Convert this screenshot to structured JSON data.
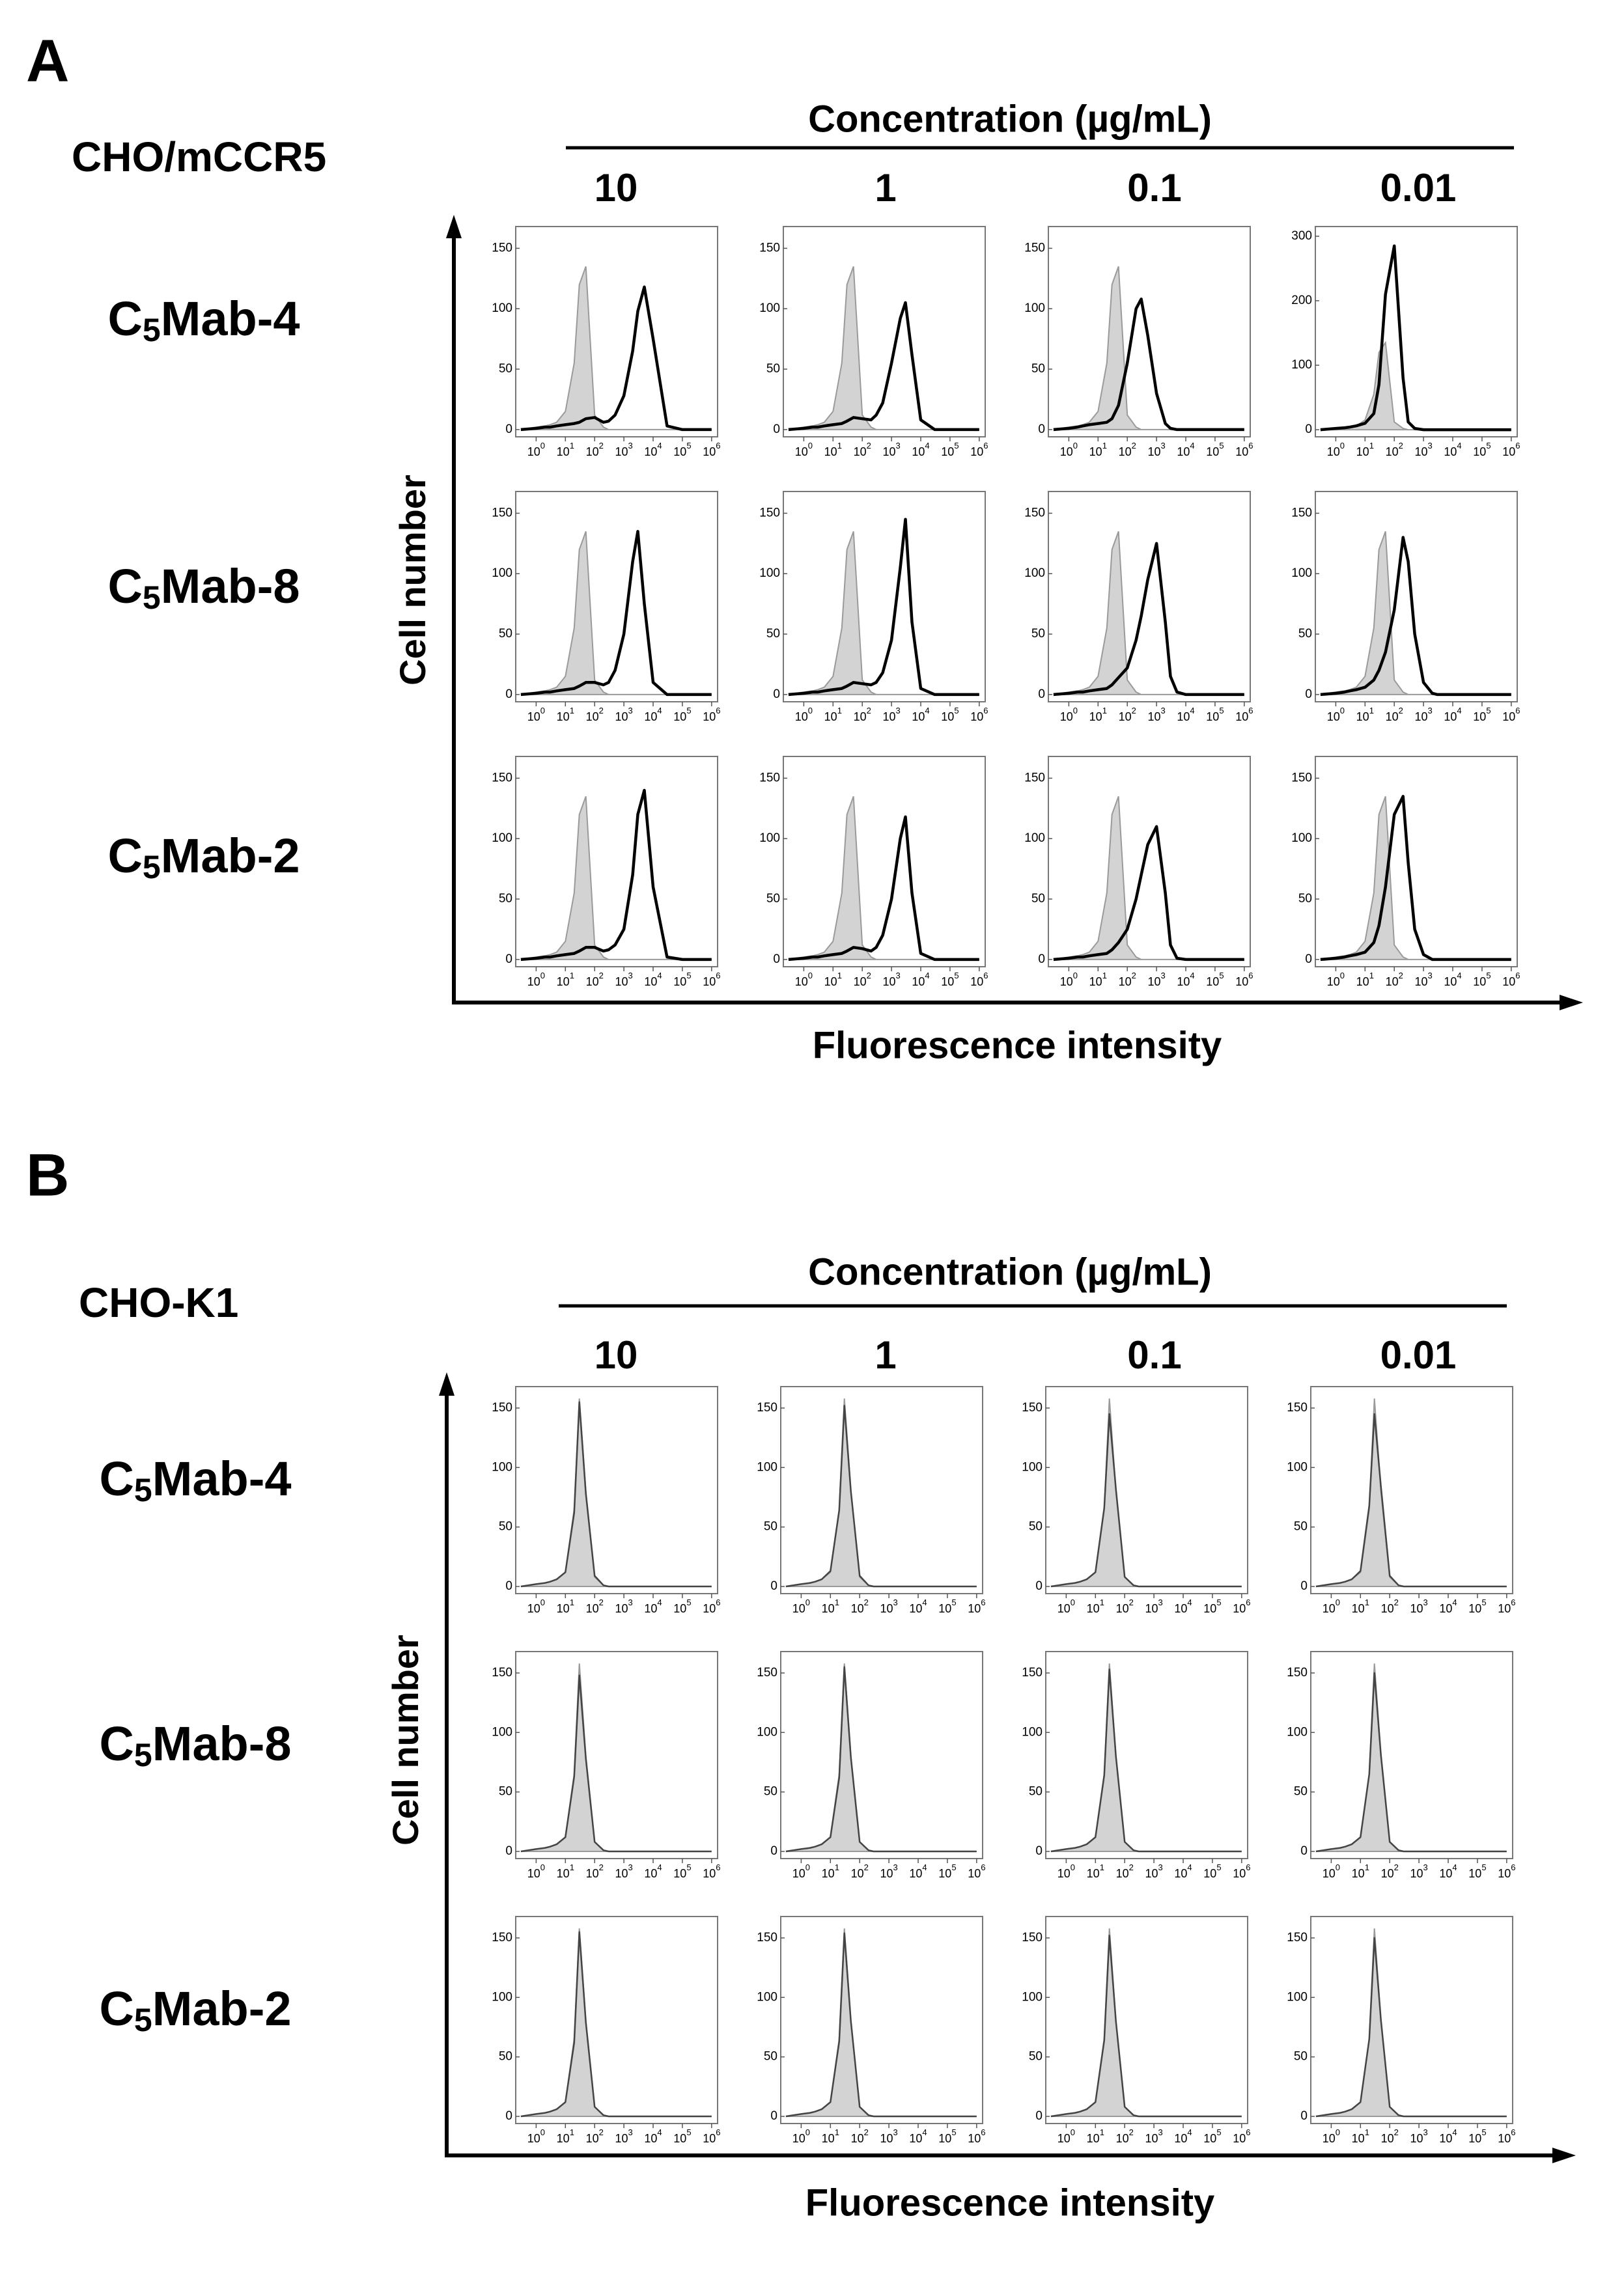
{
  "chart_data": [
    {
      "type": "histogram-grid",
      "letter": "A",
      "cell_line": "CHO/mCCR5",
      "header": "Concentration (µg/mL)",
      "y_label": "Cell number",
      "x_label": "Fluorescence intensity",
      "x_scale": "log",
      "concentrations": [
        "10",
        "1",
        "0.1",
        "0.01"
      ],
      "antibodies": [
        [
          "C",
          "5",
          "Mab-4"
        ],
        [
          "C",
          "5",
          "Mab-8"
        ],
        [
          "C",
          "5",
          "Mab-2"
        ]
      ],
      "xlim": [
        0.2,
        1600000
      ],
      "xticks": [
        {
          "value": 1,
          "label": "10",
          "superscript": "0"
        },
        {
          "value": 10,
          "label": "10",
          "superscript": "1"
        },
        {
          "value": 100,
          "label": "10",
          "superscript": "2"
        },
        {
          "value": 1000,
          "label": "10",
          "superscript": "3"
        },
        {
          "value": 10000,
          "label": "10",
          "superscript": "4"
        },
        {
          "value": 100000,
          "label": "10",
          "superscript": "5"
        },
        {
          "value": 1000000,
          "label": "10",
          "superscript": "6"
        }
      ],
      "ylim": [
        -6,
        168
      ],
      "yticks": [
        0,
        50,
        100,
        150
      ],
      "x": [
        0.3,
        1,
        2,
        3,
        5,
        10,
        20,
        30,
        50,
        100,
        200,
        300,
        500,
        1000,
        2000,
        3000,
        5000,
        10000,
        30000,
        100000,
        1000000
      ],
      "control": [
        0,
        2,
        3,
        4,
        6,
        15,
        55,
        120,
        135,
        12,
        2,
        0,
        0,
        0,
        0,
        0,
        0,
        0,
        0,
        0,
        0
      ],
      "panels": [
        [
          {
            "sample": [
              0,
              1,
              2,
              2,
              3,
              4,
              5,
              6,
              9,
              10,
              6,
              7,
              12,
              28,
              65,
              98,
              118,
              75,
              3,
              0,
              0
            ]
          },
          {
            "sample": [
              0,
              1,
              2,
              2,
              3,
              4,
              5,
              7,
              10,
              9,
              8,
              12,
              22,
              55,
              92,
              105,
              62,
              8,
              0,
              0,
              0
            ]
          },
          {
            "sample": [
              0,
              1,
              2,
              3,
              4,
              5,
              6,
              9,
              20,
              55,
              100,
              108,
              78,
              30,
              5,
              1,
              0,
              0,
              0,
              0,
              0
            ]
          },
          {
            "sample": [
              0,
              2,
              3,
              4,
              6,
              10,
              25,
              70,
              210,
              285,
              80,
              12,
              2,
              0,
              0,
              0,
              0,
              0,
              0,
              0,
              0
            ],
            "ylim": [
              -11,
              315
            ],
            "yticks": [
              0,
              100,
              200,
              300
            ]
          }
        ],
        [
          {
            "sample": [
              0,
              1,
              2,
              2,
              3,
              4,
              5,
              7,
              10,
              10,
              8,
              10,
              20,
              50,
              110,
              135,
              75,
              10,
              0,
              0,
              0
            ]
          },
          {
            "sample": [
              0,
              1,
              2,
              2,
              3,
              4,
              5,
              7,
              10,
              9,
              8,
              10,
              18,
              45,
              105,
              145,
              60,
              5,
              0,
              0,
              0
            ]
          },
          {
            "sample": [
              0,
              1,
              2,
              2,
              3,
              4,
              5,
              8,
              14,
              22,
              45,
              65,
              95,
              125,
              60,
              15,
              2,
              0,
              0,
              0,
              0
            ]
          },
          {
            "sample": [
              0,
              1,
              2,
              3,
              4,
              6,
              12,
              20,
              35,
              70,
              130,
              110,
              50,
              10,
              1,
              0,
              0,
              0,
              0,
              0,
              0
            ]
          }
        ],
        [
          {
            "sample": [
              0,
              1,
              2,
              2,
              3,
              4,
              5,
              7,
              10,
              10,
              7,
              8,
              12,
              25,
              70,
              120,
              140,
              60,
              2,
              0,
              0
            ]
          },
          {
            "sample": [
              0,
              1,
              2,
              2,
              3,
              4,
              5,
              7,
              10,
              9,
              7,
              10,
              20,
              50,
              100,
              118,
              55,
              5,
              0,
              0,
              0
            ]
          },
          {
            "sample": [
              0,
              1,
              2,
              2,
              3,
              4,
              5,
              8,
              14,
              25,
              50,
              70,
              95,
              110,
              55,
              12,
              1,
              0,
              0,
              0,
              0
            ]
          },
          {
            "sample": [
              0,
              1,
              2,
              3,
              4,
              6,
              14,
              28,
              60,
              120,
              135,
              80,
              25,
              4,
              0,
              0,
              0,
              0,
              0,
              0,
              0
            ]
          }
        ]
      ]
    },
    {
      "type": "histogram-grid",
      "letter": "B",
      "cell_line": "CHO-K1",
      "header": "Concentration (µg/mL)",
      "y_label": "Cell number",
      "x_label": "Fluorescence intensity",
      "x_scale": "log",
      "concentrations": [
        "10",
        "1",
        "0.1",
        "0.01"
      ],
      "antibodies": [
        [
          "C",
          "5",
          "Mab-4"
        ],
        [
          "C",
          "5",
          "Mab-8"
        ],
        [
          "C",
          "5",
          "Mab-2"
        ]
      ],
      "xlim": [
        0.2,
        1600000
      ],
      "xticks": [
        {
          "value": 1,
          "label": "10",
          "superscript": "0"
        },
        {
          "value": 10,
          "label": "10",
          "superscript": "1"
        },
        {
          "value": 100,
          "label": "10",
          "superscript": "2"
        },
        {
          "value": 1000,
          "label": "10",
          "superscript": "3"
        },
        {
          "value": 10000,
          "label": "10",
          "superscript": "4"
        },
        {
          "value": 100000,
          "label": "10",
          "superscript": "5"
        },
        {
          "value": 1000000,
          "label": "10",
          "superscript": "6"
        }
      ],
      "ylim": [
        -6,
        168
      ],
      "yticks": [
        0,
        50,
        100,
        150
      ],
      "x": [
        0.3,
        1,
        2,
        3,
        5,
        10,
        20,
        30,
        50,
        100,
        200,
        300,
        500,
        1000,
        2000,
        3000,
        5000,
        10000,
        30000,
        100000,
        1000000
      ],
      "control": [
        0,
        2,
        3,
        4,
        6,
        12,
        65,
        158,
        80,
        8,
        1,
        0,
        0,
        0,
        0,
        0,
        0,
        0,
        0,
        0,
        0
      ],
      "panels": [
        [
          {
            "sample": [
              0,
              2,
              3,
              4,
              6,
              12,
              62,
              155,
              78,
              9,
              1,
              0,
              0,
              0,
              0,
              0,
              0,
              0,
              0,
              0,
              0
            ]
          },
          {
            "sample": [
              0,
              2,
              3,
              4,
              6,
              13,
              64,
              152,
              80,
              9,
              1,
              0,
              0,
              0,
              0,
              0,
              0,
              0,
              0,
              0,
              0
            ]
          },
          {
            "sample": [
              0,
              2,
              3,
              4,
              6,
              12,
              66,
              145,
              82,
              8,
              1,
              0,
              0,
              0,
              0,
              0,
              0,
              0,
              0,
              0,
              0
            ]
          },
          {
            "sample": [
              0,
              2,
              3,
              4,
              6,
              13,
              68,
              145,
              84,
              9,
              1,
              0,
              0,
              0,
              0,
              0,
              0,
              0,
              0,
              0,
              0
            ]
          }
        ],
        [
          {
            "sample": [
              0,
              2,
              3,
              4,
              6,
              12,
              63,
              148,
              78,
              8,
              1,
              0,
              0,
              0,
              0,
              0,
              0,
              0,
              0,
              0,
              0
            ]
          },
          {
            "sample": [
              0,
              2,
              3,
              4,
              6,
              12,
              62,
              155,
              79,
              8,
              1,
              0,
              0,
              0,
              0,
              0,
              0,
              0,
              0,
              0,
              0
            ]
          },
          {
            "sample": [
              0,
              2,
              3,
              4,
              6,
              12,
              64,
              153,
              80,
              8,
              1,
              0,
              0,
              0,
              0,
              0,
              0,
              0,
              0,
              0,
              0
            ]
          },
          {
            "sample": [
              0,
              2,
              3,
              4,
              6,
              12,
              65,
              150,
              81,
              8,
              1,
              0,
              0,
              0,
              0,
              0,
              0,
              0,
              0,
              0,
              0
            ]
          }
        ],
        [
          {
            "sample": [
              0,
              2,
              3,
              4,
              6,
              12,
              62,
              155,
              79,
              8,
              1,
              0,
              0,
              0,
              0,
              0,
              0,
              0,
              0,
              0,
              0
            ]
          },
          {
            "sample": [
              0,
              2,
              3,
              4,
              6,
              12,
              63,
              154,
              80,
              8,
              1,
              0,
              0,
              0,
              0,
              0,
              0,
              0,
              0,
              0,
              0
            ]
          },
          {
            "sample": [
              0,
              2,
              3,
              4,
              6,
              12,
              64,
              152,
              80,
              8,
              1,
              0,
              0,
              0,
              0,
              0,
              0,
              0,
              0,
              0,
              0
            ]
          },
          {
            "sample": [
              0,
              2,
              3,
              4,
              6,
              12,
              65,
              150,
              81,
              8,
              1,
              0,
              0,
              0,
              0,
              0,
              0,
              0,
              0,
              0,
              0
            ]
          }
        ]
      ]
    }
  ]
}
